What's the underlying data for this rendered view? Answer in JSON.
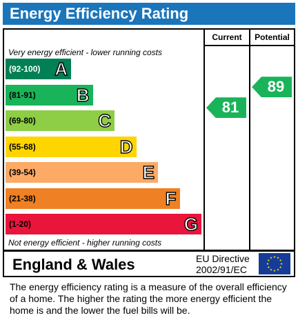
{
  "title": "Energy Efficiency Rating",
  "columns": {
    "current": "Current",
    "potential": "Potential"
  },
  "top_note": "Very energy efficient - lower running costs",
  "bottom_note": "Not energy efficient - higher running costs",
  "footer": {
    "region": "England & Wales",
    "directive_line1": "EU Directive",
    "directive_line2": "2002/91/EC"
  },
  "explanation": "The energy efficiency rating is a measure of the overall efficiency of a home.  The higher the rating the more energy efficient the home is and the lower the fuel bills will be.",
  "chart_data": {
    "type": "bar",
    "title": "Energy Efficiency Rating",
    "categories": [
      "A",
      "B",
      "C",
      "D",
      "E",
      "F",
      "G"
    ],
    "bands": [
      {
        "letter": "A",
        "range": "(92-100)",
        "color": "#008054"
      },
      {
        "letter": "B",
        "range": "(81-91)",
        "color": "#19b459"
      },
      {
        "letter": "C",
        "range": "(69-80)",
        "color": "#8dce46"
      },
      {
        "letter": "D",
        "range": "(55-68)",
        "color": "#ffd500"
      },
      {
        "letter": "E",
        "range": "(39-54)",
        "color": "#fcaa65"
      },
      {
        "letter": "F",
        "range": "(21-38)",
        "color": "#ef8023"
      },
      {
        "letter": "G",
        "range": "(1-20)",
        "color": "#e9153b"
      }
    ],
    "ratings": {
      "current": {
        "value": 81,
        "band": "B",
        "color": "#19b459"
      },
      "potential": {
        "value": 89,
        "band": "B",
        "color": "#19b459"
      }
    }
  }
}
